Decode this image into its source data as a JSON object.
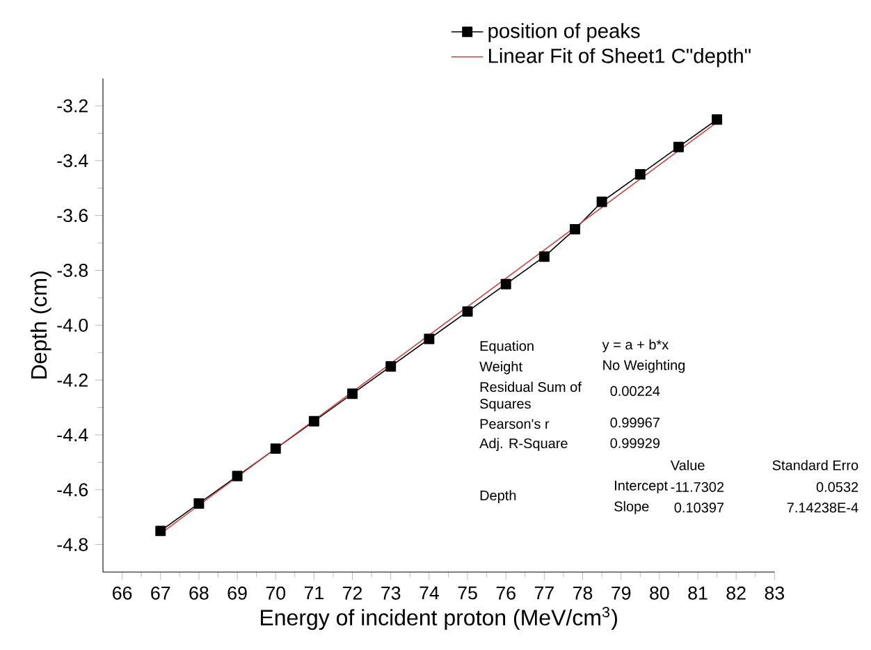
{
  "chart_data": {
    "type": "line",
    "xlabel": "Energy of incident proton (MeV/cm$^{3}$)",
    "ylabel": "Depth (cm)",
    "xlim": [
      65.5,
      83
    ],
    "xticks": [
      66,
      67,
      68,
      69,
      70,
      71,
      72,
      73,
      74,
      75,
      76,
      77,
      78,
      79,
      80,
      81,
      82,
      83
    ],
    "ylim": [
      -4.9,
      -3.1
    ],
    "yticks": [
      {
        "value": -4.8,
        "label": "-4.8"
      },
      {
        "value": -4.6,
        "label": "-4.6"
      },
      {
        "value": -4.4,
        "label": "-4.4"
      },
      {
        "value": -4.2,
        "label": "-4.2"
      },
      {
        "value": -4.0,
        "label": "-4.0"
      },
      {
        "value": -3.8,
        "label": "-3.8"
      },
      {
        "value": -3.6,
        "label": "-3.6"
      },
      {
        "value": -3.4,
        "label": "-3.4"
      },
      {
        "value": -3.2,
        "label": "-3.2"
      }
    ],
    "legend": "top",
    "grid": false,
    "series": [
      {
        "name": "position of peaks",
        "color": "#000000",
        "marker": "square",
        "x": [
          67,
          68,
          69,
          70,
          71,
          72,
          73,
          74,
          75,
          76,
          77,
          77.8,
          78.5,
          79.5,
          80.5,
          81.5
        ],
        "values": [
          -4.75,
          -4.65,
          -4.55,
          -4.45,
          -4.35,
          -4.25,
          -4.15,
          -4.05,
          -3.95,
          -3.85,
          -3.75,
          -3.65,
          -3.55,
          -3.45,
          -3.35,
          -3.25
        ]
      },
      {
        "name": "Linear Fit of Sheet1 C\"depth\"",
        "color": "#d04040",
        "marker": "none",
        "x": [
          67,
          81.5
        ],
        "values": [
          -4.76,
          -3.26
        ]
      }
    ],
    "annotations": [
      "Equation",
      "y = a + b*x",
      "Weight",
      "No Weighting",
      "Residual Sum of Squares",
      "0.00224",
      "Pearson's r",
      "0.99967",
      "Adj. R-Square",
      "0.99929",
      "Value",
      "Standard Erro",
      "Depth",
      "Intercept",
      "-11.7302",
      "0.0532",
      "Slope",
      "0.10397",
      "7.14238E-4"
    ]
  }
}
